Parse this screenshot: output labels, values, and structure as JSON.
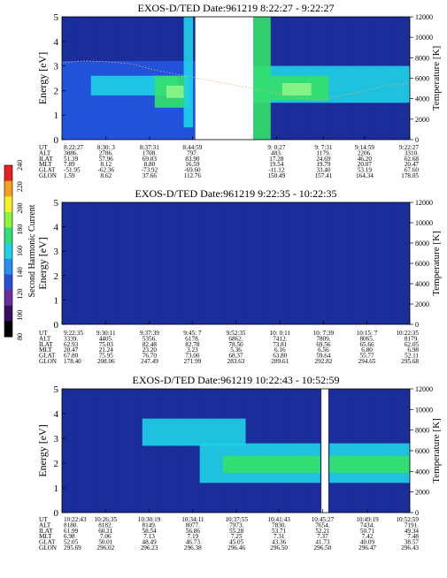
{
  "colors": {
    "background": "#1c2f9e",
    "dark": "#151f78",
    "blue": "#2356e0",
    "cyan": "#1fd2e6",
    "green": "#34e06a",
    "lightgreen": "#8ef58a",
    "purple": "#5a2f8e",
    "white": "#ffffff"
  },
  "colorbar": {
    "label": "Second Harmonic Current",
    "ticks": [
      "80",
      "100",
      "120",
      "140",
      "160",
      "180",
      "200",
      "220",
      "240"
    ],
    "range": [
      80,
      240
    ]
  },
  "chart_data": [
    {
      "type": "heatmap",
      "title": "EXOS-D/TED   Date:961219  8:22:27 - 9:22:27",
      "ylabel": "Energy [eV]",
      "y2label": "Temperature [K]",
      "ylim": [
        0,
        5
      ],
      "y2lim": [
        0,
        12000
      ],
      "yticks": [
        "0",
        "1",
        "2",
        "3",
        "4",
        "5"
      ],
      "y2ticks": [
        "0",
        "2000",
        "4000",
        "6000",
        "8000",
        "10000",
        "12000"
      ],
      "xlim": [
        0,
        60
      ],
      "gap": [
        23,
        33
      ],
      "xticks": [
        0,
        7.6,
        15.1,
        22.5,
        37.0,
        45.1,
        52.2,
        60
      ],
      "row_labels": [
        "UT",
        "ALT",
        "ILAT",
        "MLT",
        "GLAT",
        "GLON"
      ],
      "columns": [
        [
          "8:22:27",
          "3886.",
          "51.39",
          "7.89",
          "-51.95",
          "1.59"
        ],
        [
          "8:30: 3",
          "2786.",
          "57.96",
          "8.12",
          "-62.36",
          "8.62"
        ],
        [
          "8:37:31",
          "1708.",
          "69.03",
          "8.80",
          "-73.92",
          "37.66"
        ],
        [
          "8:44:59",
          "797.",
          "83.90",
          "16.59",
          "-69.60",
          "112.76"
        ],
        [
          "9: 0:27",
          "483.",
          "17.28",
          "19.54",
          "-11.12",
          "150.49"
        ],
        [
          "9: 7:31",
          "1179.",
          "24.69",
          "19.79",
          "33.40",
          "157.41"
        ],
        [
          "9:14:59",
          "2206.",
          "46.20",
          "20.07",
          "53.19",
          "164.34"
        ],
        [
          "9:22:27",
          "3310.",
          "62.68",
          "20.47",
          "67.60",
          "178.05"
        ]
      ],
      "features": [
        {
          "x": [
            0,
            23
          ],
          "e": [
            0,
            3.2
          ],
          "level": 0.2
        },
        {
          "x": [
            5,
            20
          ],
          "e": [
            1.8,
            2.6
          ],
          "level": 0.45
        },
        {
          "x": [
            16,
            22
          ],
          "e": [
            1.3,
            2.6
          ],
          "level": 0.7
        },
        {
          "x": [
            18,
            21
          ],
          "e": [
            1.7,
            2.2
          ],
          "level": 0.85
        },
        {
          "x": [
            21,
            22.6
          ],
          "e": [
            0.5,
            5
          ],
          "level": 0.3
        },
        {
          "x": [
            33,
            60
          ],
          "e": [
            1.5,
            3.0
          ],
          "level": 0.4
        },
        {
          "x": [
            33,
            36
          ],
          "e": [
            0,
            5
          ],
          "level": 0.7
        },
        {
          "x": [
            36,
            46
          ],
          "e": [
            1.6,
            2.6
          ],
          "level": 0.75
        },
        {
          "x": [
            38,
            43
          ],
          "e": [
            1.8,
            2.3
          ],
          "level": 0.9
        }
      ],
      "temperature": [
        [
          0,
          7500
        ],
        [
          4,
          7700
        ],
        [
          8,
          7600
        ],
        [
          12,
          7400
        ],
        [
          16,
          6800
        ],
        [
          44,
          3800
        ],
        [
          48,
          4300
        ],
        [
          52,
          4700
        ],
        [
          56,
          5300
        ],
        [
          60,
          5500
        ]
      ]
    },
    {
      "type": "heatmap",
      "title": "EXOS-D/TED   Date:961219  9:22:35 - 10:22:35",
      "ylabel": "Energy [eV]",
      "y2label": "Temperature [K]",
      "ylim": [
        0,
        5
      ],
      "y2lim": [
        0,
        12000
      ],
      "yticks": [
        "0",
        "1",
        "2",
        "3",
        "4",
        "5"
      ],
      "y2ticks": [
        "0",
        "2000",
        "4000",
        "6000",
        "8000",
        "10000",
        "12000"
      ],
      "xlim": [
        0,
        60
      ],
      "xticks": [
        0,
        7.6,
        15.1,
        22.5,
        30.0,
        37.6,
        45.1,
        52.6,
        60
      ],
      "row_labels": [
        "UT",
        "ALT",
        "ILAT",
        "MLT",
        "GLAT",
        "GLON"
      ],
      "columns": [
        [
          "9:22:35",
          "3339.",
          "62.93",
          "20.47",
          "67.80",
          "178.40"
        ],
        [
          "9:30:11",
          "4405.",
          "75.03",
          "21.24",
          "75.95",
          "208.06"
        ],
        [
          "9:37:39",
          "5356.",
          "82.48",
          "23.20",
          "76.70",
          "247.49"
        ],
        [
          "9:45: 7",
          "6178.",
          "82.78",
          "3.23",
          "73.00",
          "271.99"
        ],
        [
          "9:52:35",
          "6862.",
          "78.50",
          "5.36",
          "68.37",
          "283.63"
        ],
        [
          "10: 0:11",
          "7412.",
          "73.81",
          "6.16",
          "63.80",
          "289.61"
        ],
        [
          "10: 7:39",
          "7809.",
          "69.56",
          "6.56",
          "59.64",
          "292.82"
        ],
        [
          "10:15: 7",
          "8065.",
          "65.66",
          "6.80",
          "55.77",
          "294.65"
        ],
        [
          "10:22:35",
          "8179.",
          "62.05",
          "6.98",
          "52.11",
          "295.68"
        ]
      ],
      "features": [],
      "temperature": []
    },
    {
      "type": "heatmap",
      "title": "EXOS-D/TED   Date:961219  10:22:43 - 10:52:59",
      "ylabel": "Energy [eV]",
      "y2label": "Temperature [K]",
      "ylim": [
        0,
        5
      ],
      "y2lim": [
        0,
        12000
      ],
      "yticks": [
        "0",
        "1",
        "2",
        "3",
        "4",
        "5"
      ],
      "y2ticks": [
        "0",
        "2000",
        "4000",
        "6000",
        "8000",
        "10000",
        "12000"
      ],
      "xlim": [
        0,
        30.3
      ],
      "gap": [
        22.6,
        23.2
      ],
      "xticks": [
        0,
        3.8,
        7.6,
        11.4,
        15.2,
        18.9,
        22.7,
        26.6,
        30.3
      ],
      "row_labels": [
        "UT",
        "ALT",
        "ILAT",
        "MLT",
        "GLAT",
        "GLON"
      ],
      "columns": [
        [
          "10:22:43",
          "8180.",
          "61.99",
          "6.98",
          "52.05",
          "295.69"
        ],
        [
          "10:26:35",
          "8182.",
          "60.21",
          "7.06",
          "50.01",
          "296.02"
        ],
        [
          "10:30:19",
          "8149.",
          "58.54",
          "7.13",
          "48.49",
          "296.23"
        ],
        [
          "10:34:11",
          "8077.",
          "56.86",
          "7.19",
          "46.73",
          "296.38"
        ],
        [
          "10:37:55",
          "7973.",
          "55.28",
          "7.25",
          "45.05",
          "296.46"
        ],
        [
          "10:41:43",
          "7830.",
          "53.71",
          "7.31",
          "43.36",
          "296.50"
        ],
        [
          "10:45:27",
          "7654.",
          "52.21",
          "7.37",
          "41.73",
          "296.50"
        ],
        [
          "10:49:19",
          "7434.",
          "50.71",
          "7.42",
          "40.09",
          "296.47"
        ],
        [
          "10:52:59",
          "7191.",
          "49.34",
          "7.48",
          "38.57",
          "296.43"
        ]
      ],
      "features": [
        {
          "x": [
            7,
            16
          ],
          "e": [
            2.7,
            3.8
          ],
          "level": 0.3
        },
        {
          "x": [
            12,
            22.5
          ],
          "e": [
            1.2,
            2.8
          ],
          "level": 0.42
        },
        {
          "x": [
            14,
            22.5
          ],
          "e": [
            1.6,
            2.3
          ],
          "level": 0.62
        },
        {
          "x": [
            23.3,
            30.3
          ],
          "e": [
            1.2,
            2.8
          ],
          "level": 0.42
        },
        {
          "x": [
            23.3,
            30.3
          ],
          "e": [
            1.6,
            2.3
          ],
          "level": 0.62
        }
      ],
      "temperature": []
    }
  ]
}
